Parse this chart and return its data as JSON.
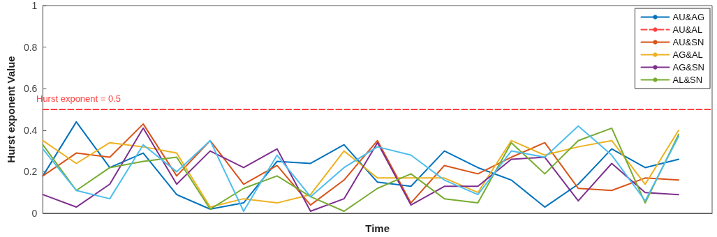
{
  "chart_data": {
    "type": "line",
    "xlabel": "Time",
    "ylabel": "Hurst exponent Value",
    "categories": [
      null,
      null,
      null,
      null,
      null,
      null,
      null,
      null,
      null,
      null,
      null,
      null,
      null,
      null,
      null,
      null,
      null,
      null,
      null,
      null,
      null
    ],
    "ylim": [
      0,
      1
    ],
    "yticks": [
      0,
      0.2,
      0.4,
      0.6,
      0.8,
      1
    ],
    "grid": false,
    "legend": "top right",
    "marker": "none",
    "tick_labels": "y",
    "annotations": [
      {
        "text": "Hurst exponent = 0.5",
        "y": 0.5
      }
    ],
    "series": [
      {
        "name": "AU&AG",
        "color": "#0072bd",
        "values": [
          0.18,
          0.44,
          0.22,
          0.29,
          0.09,
          0.02,
          0.05,
          0.25,
          0.24,
          0.33,
          0.15,
          0.13,
          0.3,
          0.22,
          0.16,
          0.03,
          0.14,
          0.31,
          0.22,
          0.26,
          null
        ]
      },
      {
        "name": "AU&AL",
        "color": "#ff4040",
        "line_style": "dashed",
        "values": [
          0.5,
          0.5,
          0.5,
          0.5,
          0.5,
          0.5,
          0.5,
          0.5,
          0.5,
          0.5,
          0.5,
          0.5,
          0.5,
          0.5,
          0.5,
          0.5,
          0.5,
          0.5,
          0.5,
          0.5,
          0.5
        ]
      },
      {
        "name": "AU&SN",
        "color": "#d95319",
        "values": [
          0.18,
          0.29,
          0.27,
          0.43,
          0.18,
          0.35,
          0.14,
          0.23,
          0.04,
          0.16,
          0.35,
          0.05,
          0.23,
          0.19,
          0.27,
          0.34,
          0.12,
          0.11,
          0.17,
          0.16,
          null
        ]
      },
      {
        "name": "AG&AL",
        "color": "#edb120",
        "values": [
          0.35,
          0.24,
          0.34,
          0.32,
          0.29,
          0.03,
          0.07,
          0.05,
          0.09,
          0.3,
          0.17,
          0.17,
          0.17,
          0.1,
          0.35,
          0.28,
          0.32,
          0.35,
          0.14,
          0.4,
          null
        ]
      },
      {
        "name": "AG&SN",
        "color": "#7e2f8e",
        "values": [
          0.09,
          0.03,
          0.14,
          0.41,
          0.14,
          0.3,
          0.22,
          0.31,
          0.01,
          0.07,
          0.34,
          0.04,
          0.13,
          0.13,
          0.26,
          0.27,
          0.06,
          0.24,
          0.1,
          0.09,
          null
        ]
      },
      {
        "name": "AL&SN",
        "color": "#77ac30",
        "values": [
          0.33,
          0.11,
          0.22,
          0.25,
          0.27,
          0.02,
          0.12,
          0.18,
          0.08,
          0.01,
          0.12,
          0.19,
          0.07,
          0.05,
          0.34,
          0.19,
          0.35,
          0.41,
          0.05,
          0.38,
          null
        ]
      },
      {
        "color": "#4dbeee",
        "values": [
          0.31,
          0.11,
          0.07,
          0.33,
          0.2,
          0.35,
          0.01,
          0.28,
          0.08,
          0.22,
          0.32,
          0.28,
          0.16,
          0.09,
          0.3,
          0.27,
          0.42,
          0.28,
          0.06,
          0.37,
          null
        ]
      }
    ]
  }
}
